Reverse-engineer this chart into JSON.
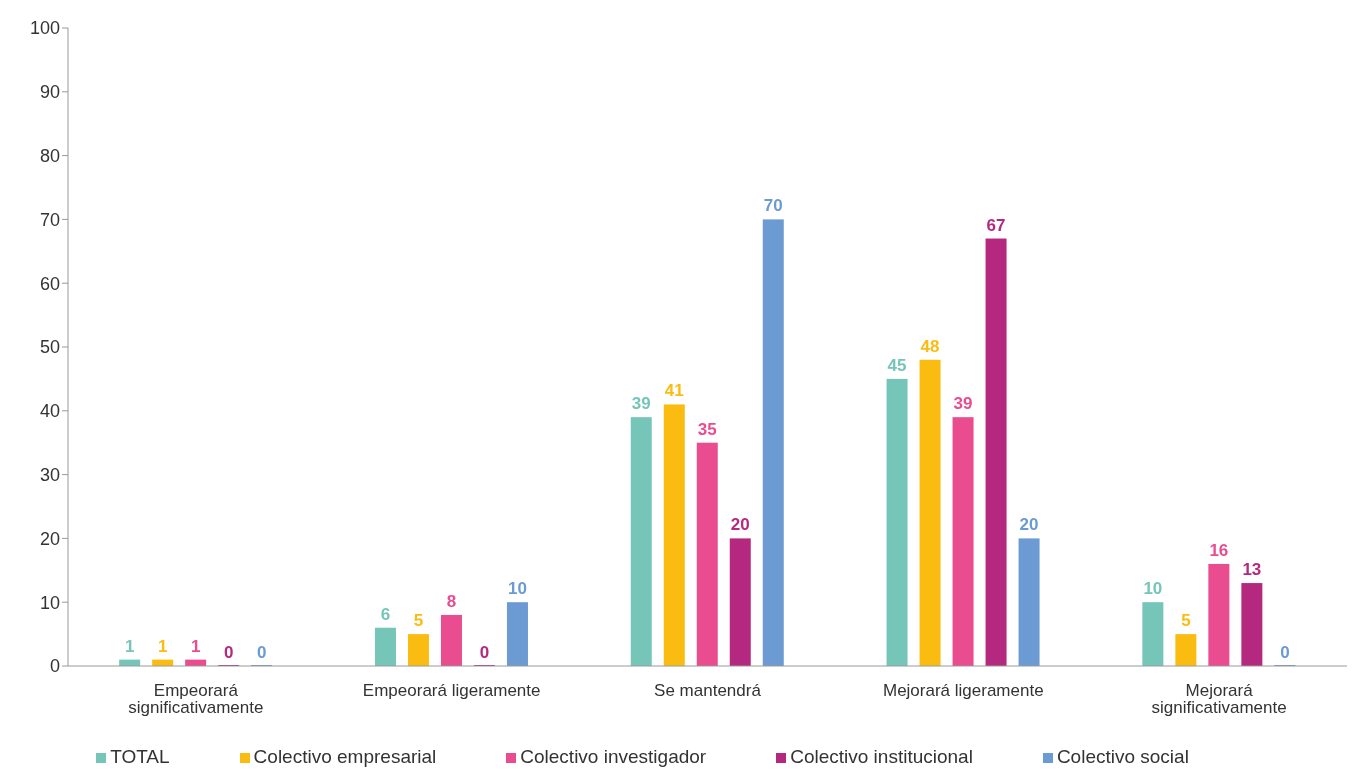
{
  "chart_data": {
    "type": "bar",
    "categories": [
      "Empeorará significativamente",
      "Empeorará ligeramente",
      "Se mantendrá",
      "Mejorará ligeramente",
      "Mejorará significativamente"
    ],
    "series": [
      {
        "name": "TOTAL",
        "color": "#76c5b9",
        "values": [
          1,
          6,
          39,
          45,
          10
        ]
      },
      {
        "name": "Colectivo empresarial",
        "color": "#fbbc12",
        "values": [
          1,
          5,
          41,
          48,
          5
        ]
      },
      {
        "name": "Colectivo investigador",
        "color": "#e94c8f",
        "values": [
          1,
          8,
          35,
          39,
          16
        ]
      },
      {
        "name": "Colectivo institucional",
        "color": "#b5287f",
        "values": [
          0,
          0,
          20,
          67,
          13
        ]
      },
      {
        "name": "Colectivo social",
        "color": "#6b9bd2",
        "values": [
          0,
          10,
          70,
          20,
          0
        ]
      }
    ],
    "ylim": [
      0,
      100
    ],
    "yticks": [
      0,
      10,
      20,
      30,
      40,
      50,
      60,
      70,
      80,
      90,
      100
    ],
    "grid": false,
    "legend": "bottom",
    "data_labels": true
  }
}
